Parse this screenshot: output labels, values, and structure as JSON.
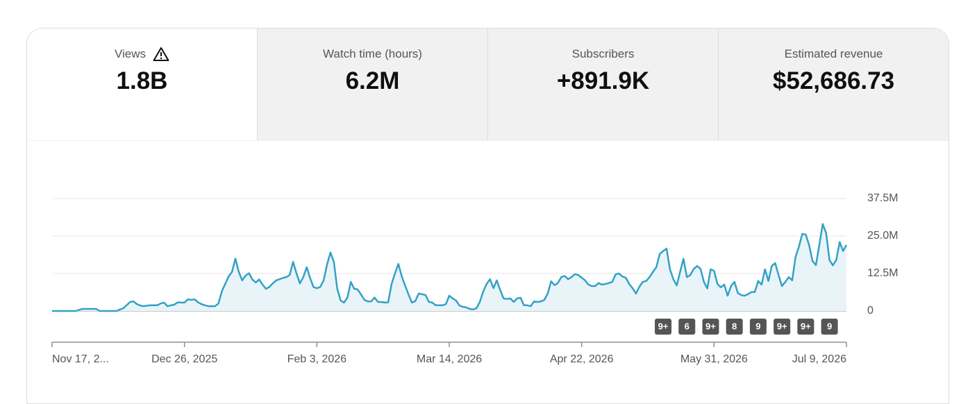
{
  "tabs": [
    {
      "label": "Views",
      "value": "1.8B"
    },
    {
      "label": "Watch time (hours)",
      "value": "6.2M"
    },
    {
      "label": "Subscribers",
      "value": "+891.9K"
    },
    {
      "label": "Estimated revenue",
      "value": "$52,686.73"
    }
  ],
  "chart_data": {
    "type": "area",
    "color": "#33a1c4",
    "fill": "#e9f4f9",
    "xlim": [
      0,
      234
    ],
    "xticks": [
      {
        "value": 0,
        "label": "Nov 17, 2..."
      },
      {
        "value": 39,
        "label": "Dec 26, 2025"
      },
      {
        "value": 78,
        "label": "Feb 3, 2026"
      },
      {
        "value": 117,
        "label": "Mar 14, 2026"
      },
      {
        "value": 156,
        "label": "Apr 22, 2026"
      },
      {
        "value": 195,
        "label": "May 31, 2026"
      },
      {
        "value": 234,
        "label": "Jul 9, 2026"
      }
    ],
    "ylim": [
      0,
      37.5
    ],
    "yticks": [
      0,
      {
        "value": 12.5,
        "label": "12.5M"
      },
      {
        "value": 25,
        "label": "25.0M"
      },
      {
        "value": 37.5,
        "label": "37.5M"
      }
    ],
    "grid": true,
    "values": [
      0,
      0,
      0,
      0,
      0,
      0,
      0,
      0,
      0.4,
      0.7,
      0.7,
      0.7,
      0.7,
      0.7,
      0,
      0,
      0,
      0,
      0,
      0,
      0.5,
      0.9,
      2.0,
      3.0,
      3.2,
      2.3,
      1.8,
      1.6,
      1.8,
      1.9,
      1.9,
      1.9,
      2.5,
      2.8,
      1.6,
      1.9,
      2.1,
      2.9,
      2.8,
      2.8,
      3.9,
      3.7,
      3.9,
      2.9,
      2.3,
      1.9,
      1.6,
      1.6,
      1.6,
      2.5,
      6.5,
      9.0,
      11.5,
      13.0,
      17.5,
      13.0,
      10.2,
      11.8,
      12.6,
      10.5,
      9.5,
      10.5,
      8.8,
      7.4,
      8.0,
      9.2,
      10.2,
      10.6,
      11.0,
      11.3,
      12.0,
      16.4,
      12.5,
      9.2,
      11.3,
      14.6,
      11.0,
      8.0,
      7.6,
      8.0,
      10.2,
      15.5,
      19.5,
      16.4,
      7.4,
      3.5,
      2.8,
      4.5,
      9.7,
      7.4,
      7.2,
      5.5,
      3.7,
      3.2,
      3.2,
      4.5,
      3.0,
      3.0,
      2.8,
      2.9,
      9.0,
      12.5,
      15.7,
      11.5,
      8.5,
      5.5,
      2.8,
      3.3,
      5.8,
      5.6,
      5.3,
      3.0,
      2.8,
      1.9,
      1.9,
      1.9,
      2.3,
      5.1,
      4.2,
      3.5,
      1.8,
      1.4,
      1.2,
      0.7,
      0.5,
      0.9,
      3.0,
      6.5,
      9.0,
      10.6,
      7.6,
      10.2,
      7.0,
      4.2,
      4.0,
      4.2,
      3.0,
      4.2,
      4.4,
      1.9,
      1.9,
      1.6,
      3.2,
      3.0,
      3.2,
      3.7,
      5.8,
      9.9,
      8.6,
      9.3,
      11.3,
      11.7,
      10.6,
      11.3,
      12.3,
      12.0,
      11.1,
      10.2,
      8.8,
      8.3,
      8.3,
      9.3,
      8.8,
      9.0,
      9.3,
      9.7,
      12.2,
      12.5,
      11.5,
      11.1,
      9.0,
      7.6,
      5.8,
      8.1,
      9.7,
      10.0,
      11.3,
      13.0,
      14.6,
      19.0,
      20.0,
      20.8,
      13.9,
      10.6,
      8.5,
      13.0,
      17.4,
      11.3,
      12.0,
      14.0,
      15.0,
      14.1,
      9.7,
      7.5,
      13.9,
      13.4,
      9.0,
      7.9,
      8.8,
      5.1,
      8.3,
      9.7,
      6.0,
      5.3,
      5.1,
      5.6,
      6.3,
      6.3,
      10.0,
      8.8,
      13.9,
      10.0,
      15.0,
      16.0,
      12.0,
      8.3,
      9.7,
      11.3,
      10.2,
      18.0,
      21.5,
      25.7,
      25.5,
      22.0,
      16.7,
      15.3,
      22.0,
      29.0,
      26.0,
      17.0,
      15.2,
      17.0,
      23.0,
      20.0,
      22.0
    ],
    "annotations": [
      {
        "x": 180,
        "label": "9+"
      },
      {
        "x": 187,
        "label": "6"
      },
      {
        "x": 194,
        "label": "9+"
      },
      {
        "x": 201,
        "label": "8"
      },
      {
        "x": 208,
        "label": "9"
      },
      {
        "x": 215,
        "label": "9+"
      },
      {
        "x": 222,
        "label": "9+"
      },
      {
        "x": 229,
        "label": "9"
      }
    ]
  }
}
